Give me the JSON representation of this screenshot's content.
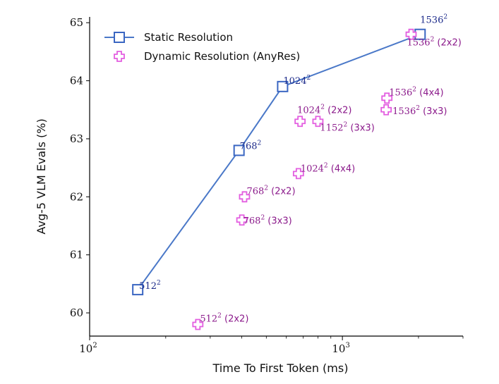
{
  "chart_data": {
    "type": "scatter",
    "title": "",
    "xlabel": "Time To First Token (ms)",
    "ylabel": "Avg-5 VLM Evals (%)",
    "xscale": "log",
    "xlim": [
      100,
      3000
    ],
    "ylim": [
      59.6,
      65.1
    ],
    "x_ticks": [
      {
        "value": 100,
        "base": "10",
        "exp": "2"
      },
      {
        "value": 1000,
        "base": "10",
        "exp": "3"
      }
    ],
    "y_ticks": [
      60,
      61,
      62,
      63,
      64,
      65
    ],
    "legend_position": "top-left",
    "colors": {
      "static_line": "#4a78c8",
      "static_marker": "#3a66c2",
      "dynamic_marker": "#e35ee0",
      "static_label": "#1c2a8a",
      "dynamic_label": "#8b1a8b"
    },
    "series": [
      {
        "name": "Static Resolution",
        "style": "line-square",
        "points": [
          {
            "x": 155,
            "y": 60.4,
            "res": "512",
            "sup": "2",
            "grid": ""
          },
          {
            "x": 390,
            "y": 62.8,
            "res": "768",
            "sup": "2",
            "grid": ""
          },
          {
            "x": 580,
            "y": 63.9,
            "res": "1024",
            "sup": "2",
            "grid": ""
          },
          {
            "x": 2030,
            "y": 64.8,
            "res": "1536",
            "sup": "2",
            "grid": ""
          }
        ]
      },
      {
        "name": "Dynamic Resolution (AnyRes)",
        "style": "plus",
        "points": [
          {
            "x": 268,
            "y": 59.8,
            "res": "512",
            "sup": "2",
            "grid": "(2x2)"
          },
          {
            "x": 410,
            "y": 62.0,
            "res": "768",
            "sup": "2",
            "grid": "(2x2)"
          },
          {
            "x": 400,
            "y": 61.6,
            "res": "768",
            "sup": "2",
            "grid": "(3x3)"
          },
          {
            "x": 670,
            "y": 62.4,
            "res": "1024",
            "sup": "2",
            "grid": "(4x4)"
          },
          {
            "x": 680,
            "y": 63.3,
            "res": "1024",
            "sup": "2",
            "grid": "(2x2)"
          },
          {
            "x": 800,
            "y": 63.3,
            "res": "1152",
            "sup": "2",
            "grid": "(3x3)"
          },
          {
            "x": 1500,
            "y": 63.7,
            "res": "1536",
            "sup": "2",
            "grid": "(4x4)"
          },
          {
            "x": 1490,
            "y": 63.5,
            "res": "1536",
            "sup": "2",
            "grid": "(3x3)"
          },
          {
            "x": 1870,
            "y": 64.8,
            "res": "1536",
            "sup": "2",
            "grid": "(2x2)"
          }
        ]
      }
    ]
  }
}
